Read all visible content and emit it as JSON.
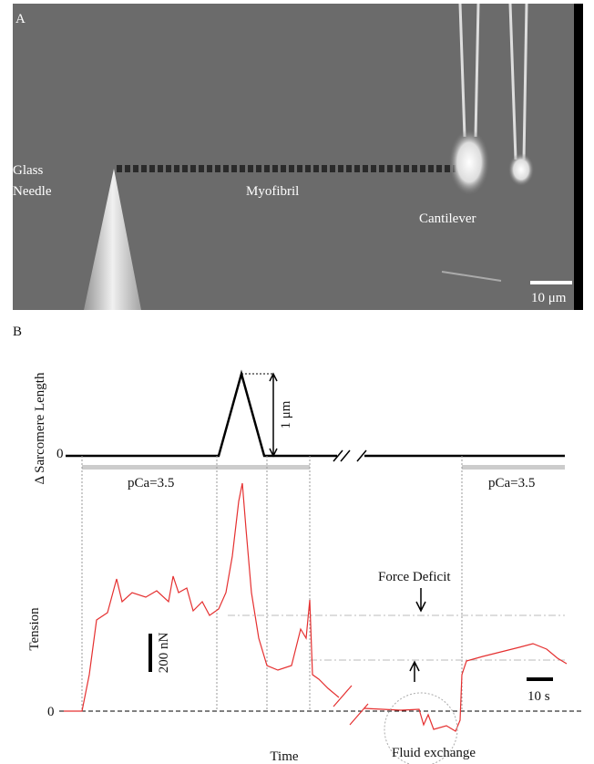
{
  "panel_a": {
    "label": "A",
    "glass_needle": [
      "Glass",
      "Needle"
    ],
    "myofibril": "Myofibril",
    "cantilever": "Cantilever",
    "scale_bar": "10 μm"
  },
  "panel_b": {
    "label": "B",
    "length_axis_label": "Δ Sarcomere Length",
    "length_zero": "0",
    "length_scale": "1 μm",
    "pca_labels": [
      "pCa=3.5",
      "pCa=3.5"
    ],
    "force_deficit": "Force Deficit",
    "tension_axis_label": "Tension",
    "tension_scale": "200 nN",
    "time_scale": "10 s",
    "tension_zero": "0",
    "x_axis_label": "Time",
    "fluid_exchange": "Fluid exchange"
  }
}
